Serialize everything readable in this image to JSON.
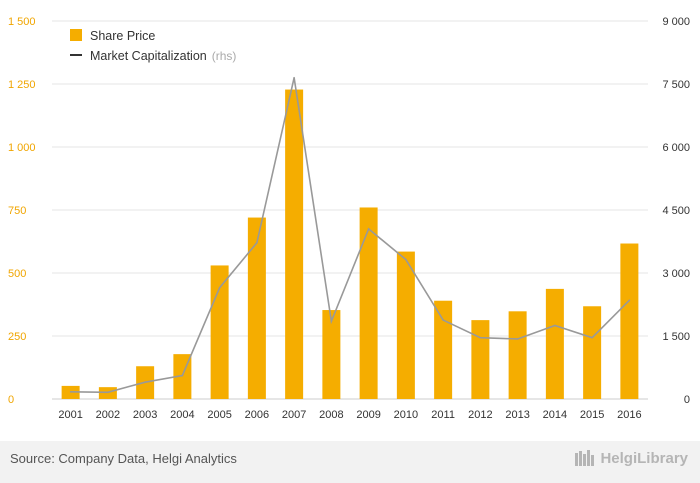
{
  "chart_data": {
    "type": "bar",
    "categories": [
      "2001",
      "2002",
      "2003",
      "2004",
      "2005",
      "2006",
      "2007",
      "2008",
      "2009",
      "2010",
      "2011",
      "2012",
      "2013",
      "2014",
      "2015",
      "2016"
    ],
    "series": [
      {
        "name": "Share Price",
        "type": "bar",
        "axis": "left",
        "color": "#f5ad00",
        "values": [
          52,
          47,
          130,
          178,
          530,
          720,
          1228,
          353,
          760,
          585,
          390,
          313,
          348,
          437,
          368,
          617
        ]
      },
      {
        "name": "Market Capitalization",
        "name_suffix": "(rhs)",
        "type": "line",
        "axis": "right",
        "color": "#999999",
        "values": [
          170,
          160,
          400,
          560,
          2650,
          3720,
          7650,
          1850,
          4050,
          3320,
          1880,
          1460,
          1430,
          1750,
          1460,
          2350
        ]
      }
    ],
    "left_axis": {
      "min": 0,
      "max": 1500,
      "ticks": [
        "0",
        "250",
        "500",
        "750",
        "1 000",
        "1 250",
        "1 500"
      ]
    },
    "right_axis": {
      "min": 0,
      "max": 9000,
      "ticks": [
        "0",
        "1 500",
        "3 000",
        "4 500",
        "6 000",
        "7 500",
        "9 000"
      ]
    },
    "grid": true,
    "legend_position": "top-left"
  },
  "footer": {
    "source": "Source: Company Data, Helgi Analytics",
    "brand": "HelgiLibrary"
  }
}
